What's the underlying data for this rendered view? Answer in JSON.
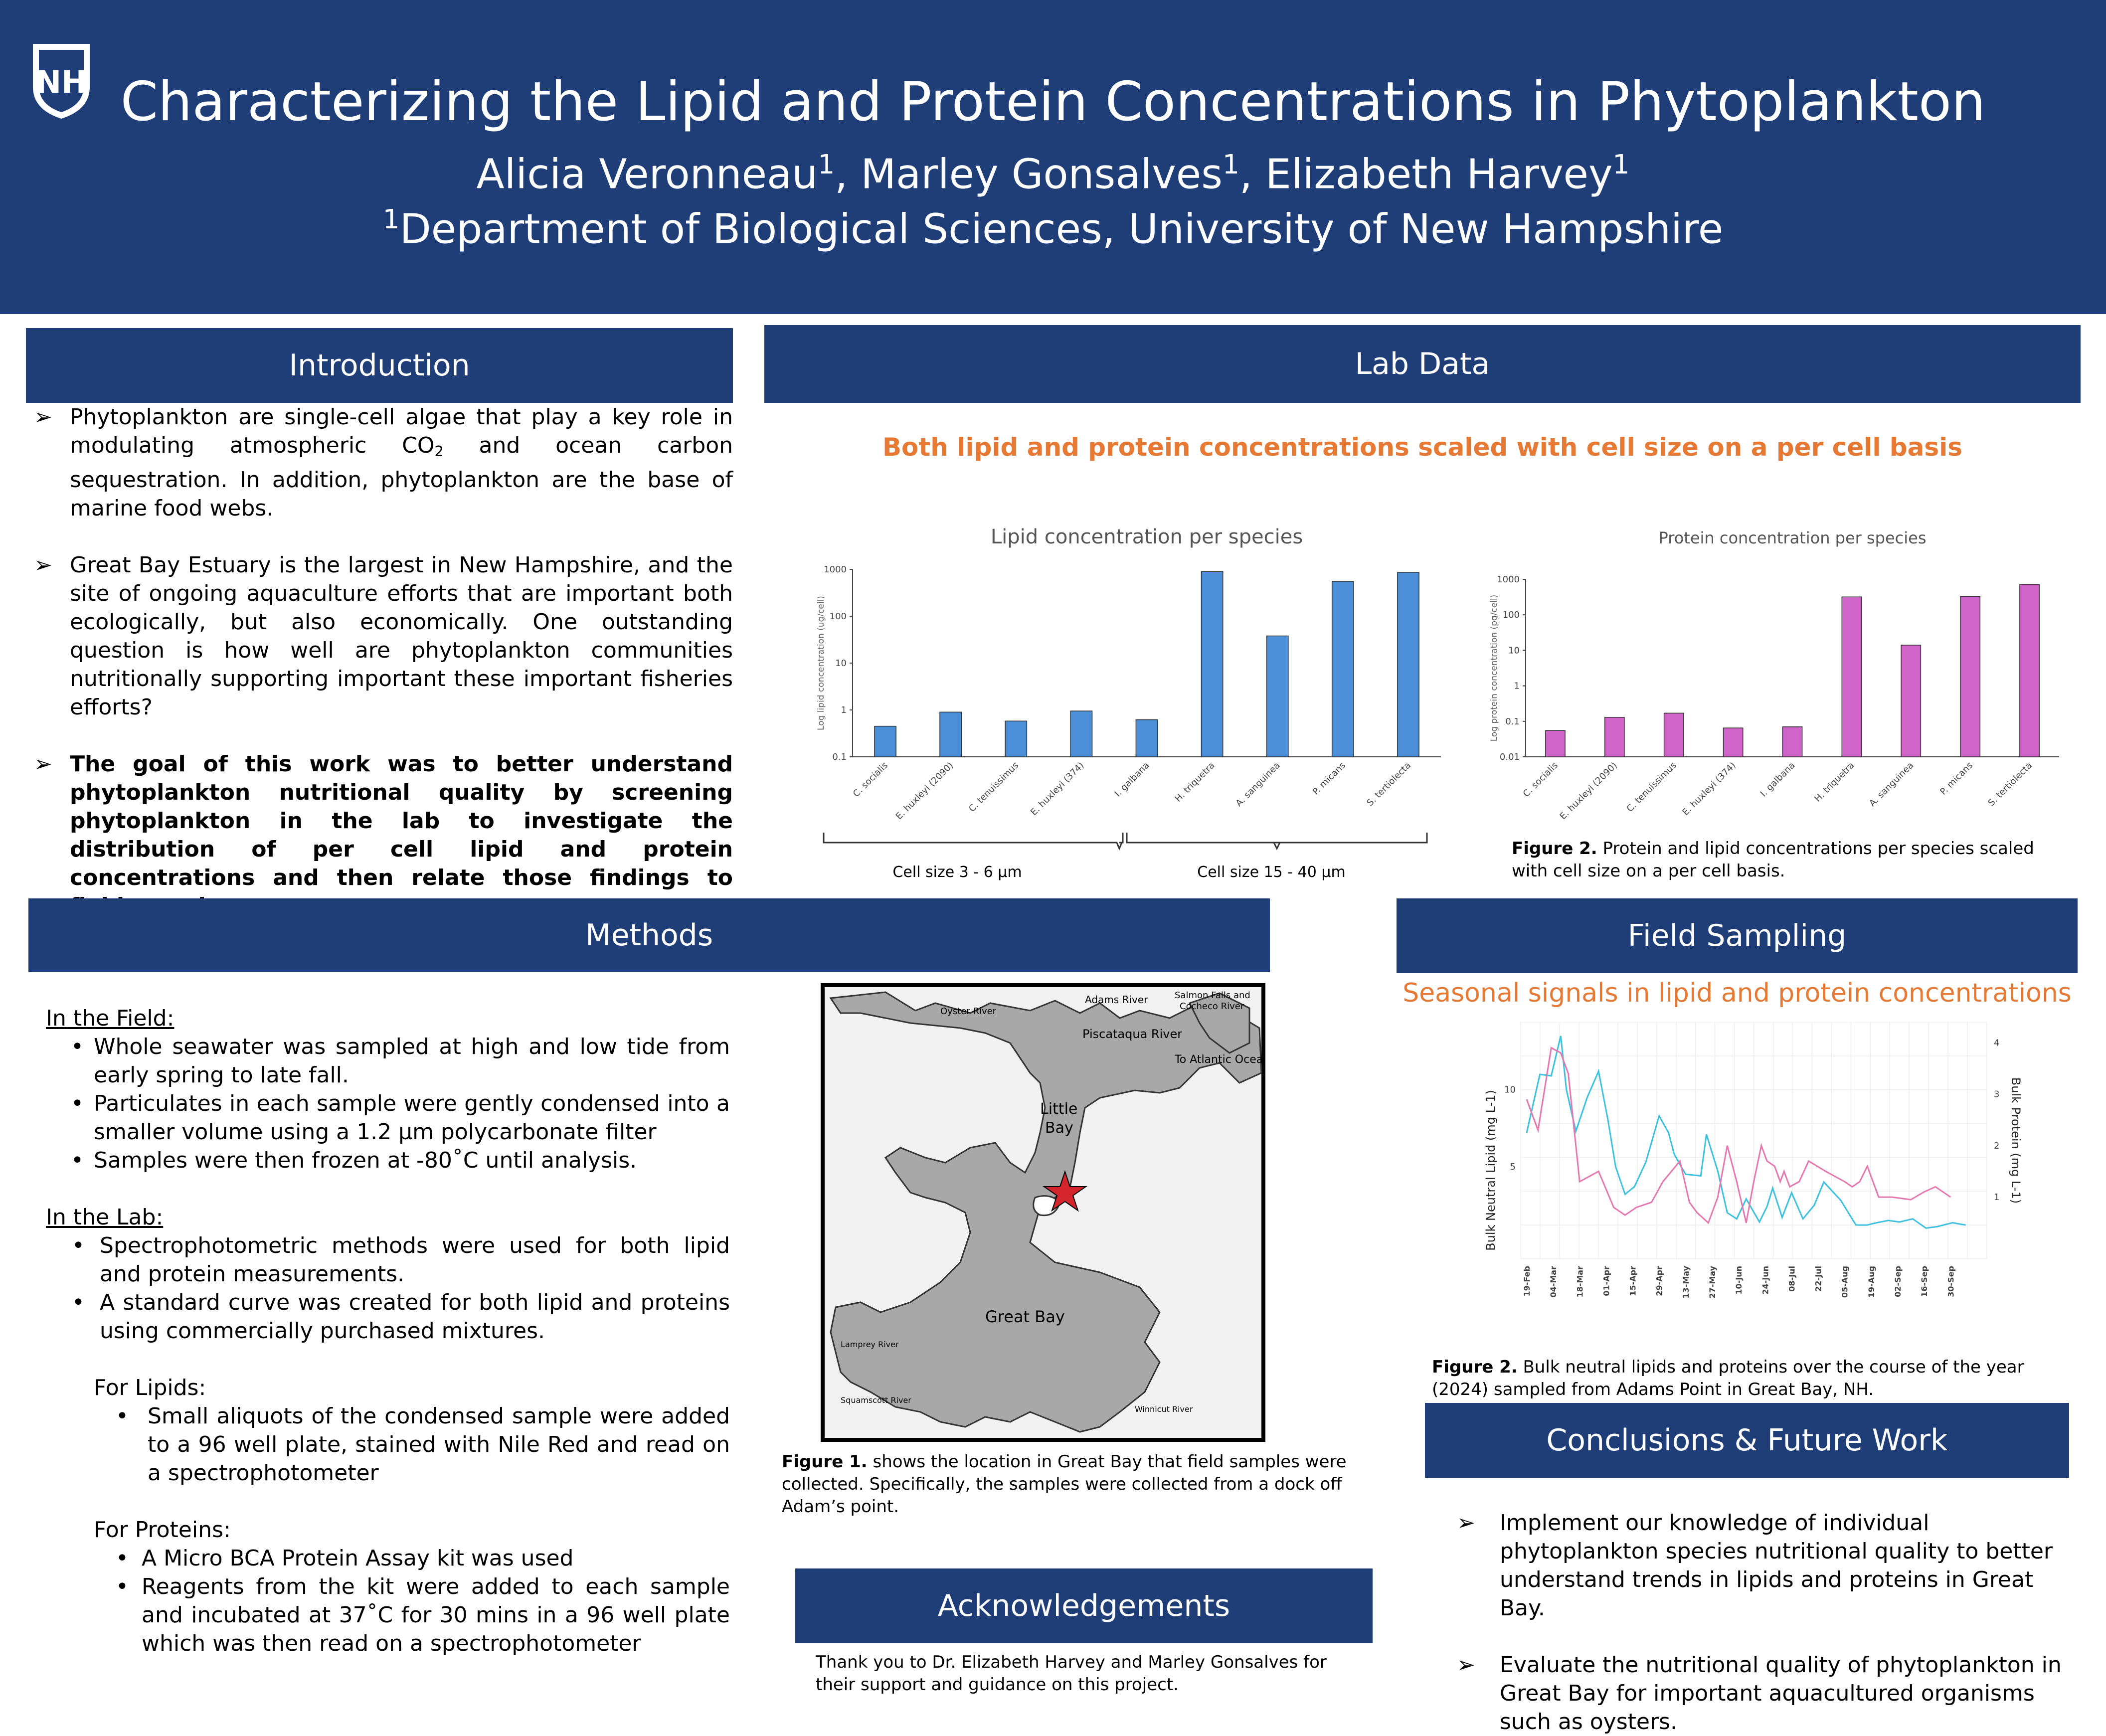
{
  "header": {
    "logo_text": "NH",
    "title": "Characterizing the Lipid and Protein Concentrations in Phytoplankton",
    "authors": [
      {
        "name": "Alicia Veronneau",
        "sup": "1"
      },
      {
        "name": "Marley Gonsalves",
        "sup": "1"
      },
      {
        "name": "Elizabeth Harvey",
        "sup": "1"
      }
    ],
    "affiliation_sup": "1",
    "affiliation": "Department of Biological Sciences, University of New Hampshire"
  },
  "introduction": {
    "heading": "Introduction",
    "p1_a": "Phytoplankton are single-cell algae that play a key role in modulating atmospheric CO",
    "p1_sub": "2",
    "p1_b": " and ocean carbon sequestration. In addition, phytoplankton are the base of marine food webs.",
    "p2": "Great Bay Estuary is the largest in New Hampshire, and the site of ongoing aquaculture efforts that are important both ecologically, but also economically. One outstanding question is how well are phytoplankton communities nutritionally supporting important these important fisheries efforts?",
    "p3": "The goal of this work was to better understand phytoplankton nutritional quality by screening phytoplankton in the lab to investigate the distribution of per cell lipid and protein concentrations and then relate those findings to field samples."
  },
  "lab_data": {
    "heading": "Lab Data",
    "subtitle": "Both lipid and protein concentrations scaled with cell size on a per cell basis",
    "group_small": "Cell size 3 - 6 µm",
    "group_large": "Cell size 15 - 40 µm",
    "caption_label": "Figure 2.",
    "caption": " Protein and lipid concentrations per species scaled with cell size on a per cell basis."
  },
  "chart_data": [
    {
      "type": "bar",
      "title": "Lipid concentration per species",
      "ylabel": "Log lipid concentration (ug/cell)",
      "yscale": "log",
      "ylim": [
        0.1,
        1000
      ],
      "yticks": [
        "0.1",
        "1",
        "10",
        "100",
        "1000"
      ],
      "categories": [
        "C. socialis",
        "E. huxleyi (2090)",
        "C. tenuissimus",
        "E. huxleyi (374)",
        "I. galbana",
        "H. triquetra",
        "A. sanguinea",
        "P. micans",
        "S. tertiolecta"
      ],
      "values": [
        0.45,
        0.9,
        0.58,
        0.95,
        0.62,
        900,
        38,
        550,
        860
      ],
      "color": "#4a8fd8"
    },
    {
      "type": "bar",
      "title": "Protein concentration per species",
      "ylabel": "Log protein concentration (pg/cell)",
      "yscale": "log",
      "ylim": [
        0.01,
        1000
      ],
      "yticks": [
        "0.01",
        "0.1",
        "1",
        "10",
        "100",
        "1000"
      ],
      "categories": [
        "C. socialis",
        "E. huxleyi (2090)",
        "C. tenuissimus",
        "E. huxleyi (374)",
        "I. galbana",
        "H. triquetra",
        "A. sanguinea",
        "P. micans",
        "S. tertiolecta"
      ],
      "values": [
        0.055,
        0.13,
        0.17,
        0.065,
        0.07,
        320,
        14,
        330,
        720
      ],
      "color": "#d064c8"
    },
    {
      "type": "line",
      "ylabel": "Bulk Neutral Lipid (mg L-1)",
      "y2label": "Bulk Protein (mg L-1)",
      "yticks": [
        "5",
        "10"
      ],
      "y2ticks": [
        "1",
        "2",
        "3",
        "4"
      ],
      "xticks": [
        "19-Feb",
        "04-Mar",
        "18-Mar",
        "01-Apr",
        "15-Apr",
        "29-Apr",
        "13-May",
        "27-May",
        "10-Jun",
        "24-Jun",
        "08-Jul",
        "22-Jul",
        "05-Aug",
        "19-Aug",
        "02-Sep",
        "16-Sep",
        "30-Sep"
      ],
      "grid": true,
      "series": [
        {
          "color": "#3cc2de",
          "x": [
            0,
            0.35,
            0.65,
            0.9,
            1.05,
            1.3,
            1.6,
            1.9,
            2.15,
            2.35,
            2.6,
            2.85,
            3.15,
            3.5,
            3.75,
            3.9,
            4.2,
            4.6,
            4.75,
            5.05,
            5.3,
            5.55,
            5.8,
            6.15,
            6.35,
            6.5,
            6.75,
            7.0,
            7.3,
            7.6,
            7.85,
            8.3,
            8.7,
            9.0,
            9.15,
            9.55,
            9.85,
            10.2,
            10.55,
            10.85,
            11.25,
            11.6
          ],
          "y": [
            7.2,
            11,
            10.9,
            13.5,
            10,
            7.3,
            9.5,
            11.2,
            8,
            5,
            3.2,
            3.7,
            5.3,
            8.3,
            7.2,
            5.8,
            4.5,
            4.4,
            7.1,
            4.7,
            2,
            1.6,
            2.9,
            1.4,
            2.4,
            3.6,
            1.7,
            3.3,
            1.6,
            2.5,
            4,
            2.8,
            1.2,
            1.2,
            1.3,
            1.5,
            1.4,
            1.6,
            1.0,
            1.1,
            1.35,
            1.2
          ]
        },
        {
          "color": "#e678b0",
          "x": [
            0,
            0.3,
            0.65,
            0.9,
            1.1,
            1.4,
            1.9,
            2.3,
            2.6,
            2.9,
            3.3,
            3.6,
            4.05,
            4.3,
            4.5,
            4.8,
            5.05,
            5.3,
            5.55,
            5.8,
            6.0,
            6.2,
            6.35,
            6.55,
            6.7,
            6.8,
            6.95,
            7.2,
            7.45,
            7.9,
            8.4,
            8.6,
            8.8,
            9.0,
            9.3,
            9.65,
            10.15,
            10.5,
            10.8,
            11.2
          ],
          "y": [
            2.9,
            2.3,
            3.9,
            3.8,
            3.4,
            1.3,
            1.5,
            0.8,
            0.65,
            0.8,
            0.9,
            1.3,
            1.7,
            0.9,
            0.7,
            0.5,
            1.0,
            2.0,
            1.3,
            0.5,
            1.3,
            2.0,
            1.7,
            1.6,
            1.3,
            1.5,
            1.2,
            1.3,
            1.7,
            1.5,
            1.3,
            1.2,
            1.3,
            1.6,
            1.0,
            1.0,
            0.95,
            1.1,
            1.2,
            1.0
          ]
        }
      ]
    }
  ],
  "methods": {
    "heading": "Methods",
    "field_label": "In the Field:",
    "field_items": [
      "Whole seawater was sampled at high and low tide from early spring to late fall.",
      "Particulates in each sample were gently condensed into a smaller volume using a 1.2 µm polycarbonate filter",
      "Samples were then frozen at -80˚C until analysis."
    ],
    "lab_label": "In the Lab:",
    "lab_items": [
      "Spectrophotometric methods were used for both lipid and protein measurements.",
      "A standard curve was created for both lipid and proteins using commercially purchased mixtures."
    ],
    "lipids_label": "For Lipids:",
    "lipids_items": [
      "Small aliquots of the condensed sample were added to a 96 well plate, stained with Nile Red and read on a spectrophotometer"
    ],
    "proteins_label": "For Proteins:",
    "proteins_items": [
      "A Micro BCA Protein Assay kit was used",
      "Reagents from the kit were added to each sample and incubated at 37˚C for 30 mins in a 96 well plate which was then read on a spectrophotometer"
    ]
  },
  "map": {
    "labels": {
      "adams_river": "Adams River",
      "salmon_falls": "Salmon Falls and",
      "cocheco": "Cocheco River",
      "oyster_river": "Oyster River",
      "piscataqua": "Piscataqua River",
      "to_atlantic": "To Atlantic Ocean",
      "little_bay_1": "Little",
      "little_bay_2": "Bay",
      "great_bay": "Great Bay",
      "lamprey": "Lamprey River",
      "squamscott": "Squamscott River",
      "winnicut": "Winnicut River"
    },
    "caption_label": "Figure 1.",
    "caption": " shows the location in Great Bay that field samples were collected. Specifically, the samples were collected from a dock off Adam’s point."
  },
  "field": {
    "heading": "Field Sampling",
    "subtitle": "Seasonal signals in lipid and protein concentrations",
    "caption_label": "Figure 2.",
    "caption": " Bulk neutral lipids and proteins over the course of the year (2024) sampled from Adams Point in Great Bay, NH."
  },
  "conclusions": {
    "heading": "Conclusions & Future Work",
    "items": [
      "Implement our knowledge of individual phytoplankton species nutritional quality to better understand trends in lipids and proteins in Great Bay.",
      "Evaluate the nutritional quality of phytoplankton in Great Bay for important aquacultured organisms such as oysters."
    ]
  },
  "acknowledgements": {
    "heading": "Acknowledgements",
    "text": "Thank you to Dr. Elizabeth Harvey and Marley Gonsalves for their support and guidance on this project."
  },
  "colors": {
    "navy": "#1f3e78",
    "orange": "#e67a35",
    "lipid_bar": "#4a8fd8",
    "protein_bar": "#d064c8"
  }
}
